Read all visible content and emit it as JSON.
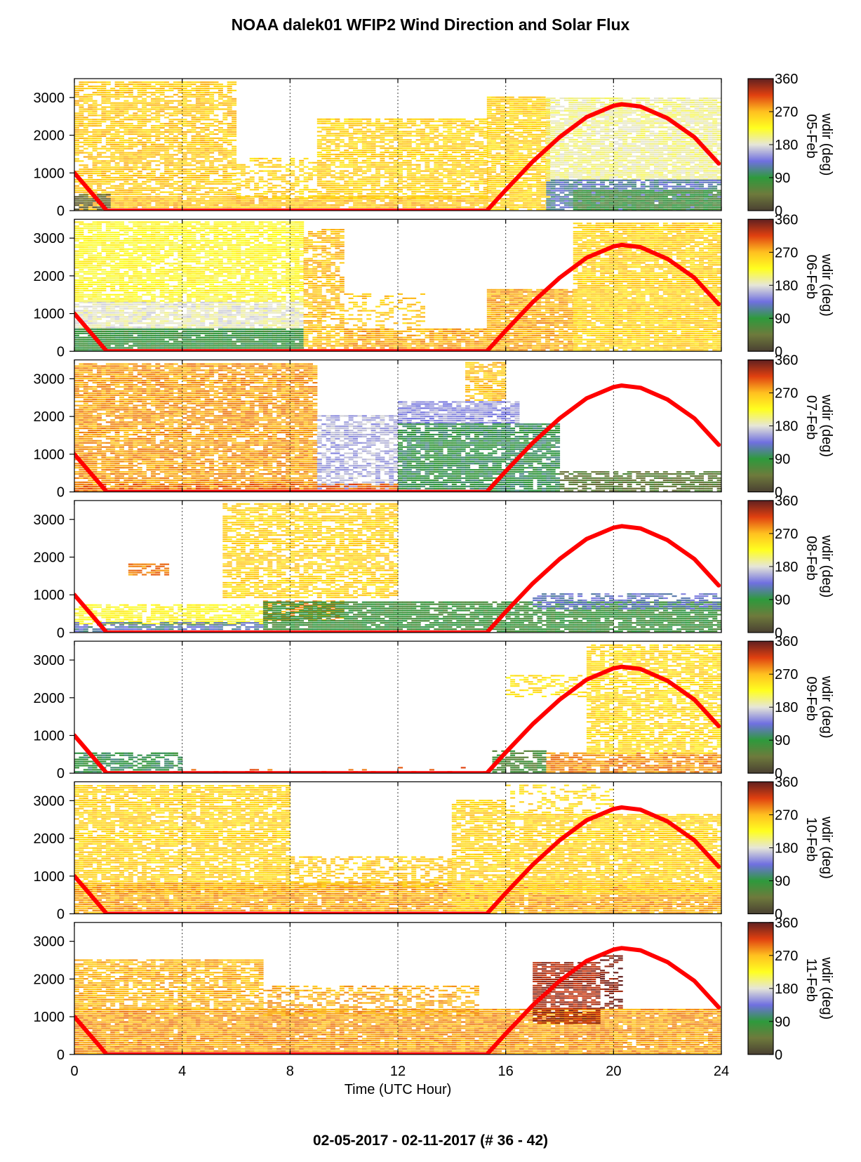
{
  "title": "NOAA dalek01 WFIP2 Wind Direction and Solar Flux",
  "footer": "02-05-2017 - 02-11-2017   (# 36 - 42)",
  "chart_data": {
    "type": "heatmap",
    "xlabel": "Time (UTC Hour)",
    "x_ticks": [
      0,
      4,
      8,
      12,
      16,
      20,
      24
    ],
    "xlim": [
      0,
      24
    ],
    "ylim": [
      0,
      3500
    ],
    "y_ticks": [
      0,
      1000,
      2000,
      3000
    ],
    "grid": "vertical dotted lines at 4, 8, 12, 16, 20",
    "colorbar": {
      "label": "wdir (deg)",
      "ticks": [
        0,
        90,
        180,
        270,
        360
      ],
      "stops": [
        {
          "value": 0,
          "color": "#4a4032"
        },
        {
          "value": 45,
          "color": "#6e7a3c"
        },
        {
          "value": 90,
          "color": "#2e9a3c"
        },
        {
          "value": 135,
          "color": "#7070e0"
        },
        {
          "value": 180,
          "color": "#e6e6d8"
        },
        {
          "value": 225,
          "color": "#ffff20"
        },
        {
          "value": 270,
          "color": "#ffc020"
        },
        {
          "value": 315,
          "color": "#e04010"
        },
        {
          "value": 360,
          "color": "#602020"
        }
      ]
    },
    "solar_flux_curve": {
      "color": "#ff0000",
      "points": [
        [
          0,
          1000
        ],
        [
          1.2,
          0
        ],
        [
          15.3,
          0
        ],
        [
          16,
          550
        ],
        [
          17,
          1300
        ],
        [
          18,
          1950
        ],
        [
          19,
          2480
        ],
        [
          20,
          2780
        ],
        [
          20.3,
          2820
        ],
        [
          21,
          2760
        ],
        [
          22,
          2450
        ],
        [
          23,
          1950
        ],
        [
          23.9,
          1250
        ]
      ]
    },
    "panels": [
      {
        "label": "05-Feb",
        "regions": [
          {
            "x": [
              0,
              6
            ],
            "y": [
              400,
              3400
            ],
            "wdir": 260,
            "density": 0.75
          },
          {
            "x": [
              0,
              15.3
            ],
            "y": [
              0,
              350
            ],
            "wdir": 265,
            "density": 0.9
          },
          {
            "x": [
              6,
              9
            ],
            "y": [
              300,
              1400
            ],
            "wdir": 255,
            "density": 0.55
          },
          {
            "x": [
              9,
              15.3
            ],
            "y": [
              300,
              2400
            ],
            "wdir": 255,
            "density": 0.75
          },
          {
            "x": [
              15.3,
              17.5
            ],
            "y": [
              0,
              3000
            ],
            "wdir": 255,
            "density": 0.85
          },
          {
            "x": [
              17.5,
              24
            ],
            "y": [
              800,
              3000
            ],
            "wdir": 195,
            "density": 0.85
          },
          {
            "x": [
              17.5,
              24
            ],
            "y": [
              0,
              800
            ],
            "wdir": 120,
            "density": 0.85
          },
          {
            "x": [
              18.5,
              24
            ],
            "y": [
              0,
              500
            ],
            "wdir": 75,
            "density": 0.9
          },
          {
            "x": [
              0,
              1.2
            ],
            "y": [
              0,
              400
            ],
            "wdir": 30,
            "density": 0.8
          }
        ]
      },
      {
        "label": "06-Feb",
        "regions": [
          {
            "x": [
              0,
              8.5
            ],
            "y": [
              1300,
              3400
            ],
            "wdir": 225,
            "density": 0.8
          },
          {
            "x": [
              0,
              8.5
            ],
            "y": [
              600,
              1300
            ],
            "wdir": 185,
            "density": 0.85
          },
          {
            "x": [
              0,
              8.5
            ],
            "y": [
              0,
              600
            ],
            "wdir": 85,
            "density": 0.95
          },
          {
            "x": [
              8.5,
              10
            ],
            "y": [
              0,
              3200
            ],
            "wdir": 265,
            "density": 0.7
          },
          {
            "x": [
              10,
              15.3
            ],
            "y": [
              0,
              600
            ],
            "wdir": 275,
            "density": 0.85
          },
          {
            "x": [
              10,
              13
            ],
            "y": [
              600,
              1500
            ],
            "wdir": 260,
            "density": 0.3
          },
          {
            "x": [
              15.3,
              18.5
            ],
            "y": [
              0,
              1600
            ],
            "wdir": 275,
            "density": 0.9
          },
          {
            "x": [
              18.5,
              24
            ],
            "y": [
              0,
              3400
            ],
            "wdir": 255,
            "density": 0.9
          }
        ]
      },
      {
        "label": "07-Feb",
        "regions": [
          {
            "x": [
              0,
              9
            ],
            "y": [
              0,
              3400
            ],
            "wdir": 280,
            "density": 0.85
          },
          {
            "x": [
              9,
              12
            ],
            "y": [
              0,
              2000
            ],
            "wdir": 160,
            "density": 0.65
          },
          {
            "x": [
              12,
              16.5
            ],
            "y": [
              1800,
              2400
            ],
            "wdir": 150,
            "density": 0.8
          },
          {
            "x": [
              12,
              18
            ],
            "y": [
              0,
              1800
            ],
            "wdir": 95,
            "density": 0.85
          },
          {
            "x": [
              14.5,
              16
            ],
            "y": [
              2400,
              3400
            ],
            "wdir": 265,
            "density": 0.7
          },
          {
            "x": [
              18,
              24
            ],
            "y": [
              0,
              500
            ],
            "wdir": 50,
            "density": 0.75
          },
          {
            "x": [
              0,
              12
            ],
            "y": [
              0,
              200
            ],
            "wdir": 300,
            "density": 0.6
          }
        ]
      },
      {
        "label": "08-Feb",
        "regions": [
          {
            "x": [
              5.5,
              12
            ],
            "y": [
              900,
              3400
            ],
            "wdir": 255,
            "density": 0.7
          },
          {
            "x": [
              0,
              7
            ],
            "y": [
              200,
              700
            ],
            "wdir": 225,
            "density": 0.75
          },
          {
            "x": [
              7,
              10
            ],
            "y": [
              300,
              800
            ],
            "wdir": 280,
            "density": 0.6
          },
          {
            "x": [
              7,
              24
            ],
            "y": [
              0,
              800
            ],
            "wdir": 80,
            "density": 0.85
          },
          {
            "x": [
              0,
              7
            ],
            "y": [
              0,
              250
            ],
            "wdir": 120,
            "density": 0.7
          },
          {
            "x": [
              17,
              24
            ],
            "y": [
              600,
              1000
            ],
            "wdir": 130,
            "density": 0.55
          },
          {
            "x": [
              2,
              3.5
            ],
            "y": [
              1500,
              1800
            ],
            "wdir": 290,
            "density": 0.7
          }
        ]
      },
      {
        "label": "09-Feb",
        "regions": [
          {
            "x": [
              0,
              4
            ],
            "y": [
              0,
              500
            ],
            "wdir": 95,
            "density": 0.7
          },
          {
            "x": [
              4,
              15.5
            ],
            "y": [
              0,
              150
            ],
            "wdir": 300,
            "density": 0.12
          },
          {
            "x": [
              15.5,
              17.5
            ],
            "y": [
              0,
              600
            ],
            "wdir": 70,
            "density": 0.75
          },
          {
            "x": [
              17.5,
              24
            ],
            "y": [
              0,
              500
            ],
            "wdir": 285,
            "density": 0.8
          },
          {
            "x": [
              16,
              19
            ],
            "y": [
              2000,
              2600
            ],
            "wdir": 245,
            "density": 0.45
          },
          {
            "x": [
              19,
              24
            ],
            "y": [
              500,
              3400
            ],
            "wdir": 250,
            "density": 0.75
          }
        ]
      },
      {
        "label": "10-Feb",
        "regions": [
          {
            "x": [
              0,
              8
            ],
            "y": [
              500,
              3400
            ],
            "wdir": 255,
            "density": 0.8
          },
          {
            "x": [
              0,
              24
            ],
            "y": [
              0,
              800
            ],
            "wdir": 275,
            "density": 0.92
          },
          {
            "x": [
              8,
              14
            ],
            "y": [
              700,
              1500
            ],
            "wdir": 260,
            "density": 0.55
          },
          {
            "x": [
              14,
              16
            ],
            "y": [
              0,
              3000
            ],
            "wdir": 255,
            "density": 0.75
          },
          {
            "x": [
              16,
              24
            ],
            "y": [
              500,
              2600
            ],
            "wdir": 255,
            "density": 0.85
          },
          {
            "x": [
              16,
              20
            ],
            "y": [
              2600,
              3400
            ],
            "wdir": 250,
            "density": 0.3
          }
        ]
      },
      {
        "label": "11-Feb",
        "regions": [
          {
            "x": [
              0,
              24
            ],
            "y": [
              0,
              1200
            ],
            "wdir": 280,
            "density": 0.95
          },
          {
            "x": [
              0,
              7
            ],
            "y": [
              1200,
              2500
            ],
            "wdir": 270,
            "density": 0.8
          },
          {
            "x": [
              7,
              15
            ],
            "y": [
              1000,
              1800
            ],
            "wdir": 275,
            "density": 0.5
          },
          {
            "x": [
              17,
              19.5
            ],
            "y": [
              800,
              2400
            ],
            "wdir": 335,
            "density": 0.85
          },
          {
            "x": [
              19.5,
              20.2
            ],
            "y": [
              1200,
              2600
            ],
            "wdir": 345,
            "density": 0.5
          }
        ]
      }
    ]
  }
}
